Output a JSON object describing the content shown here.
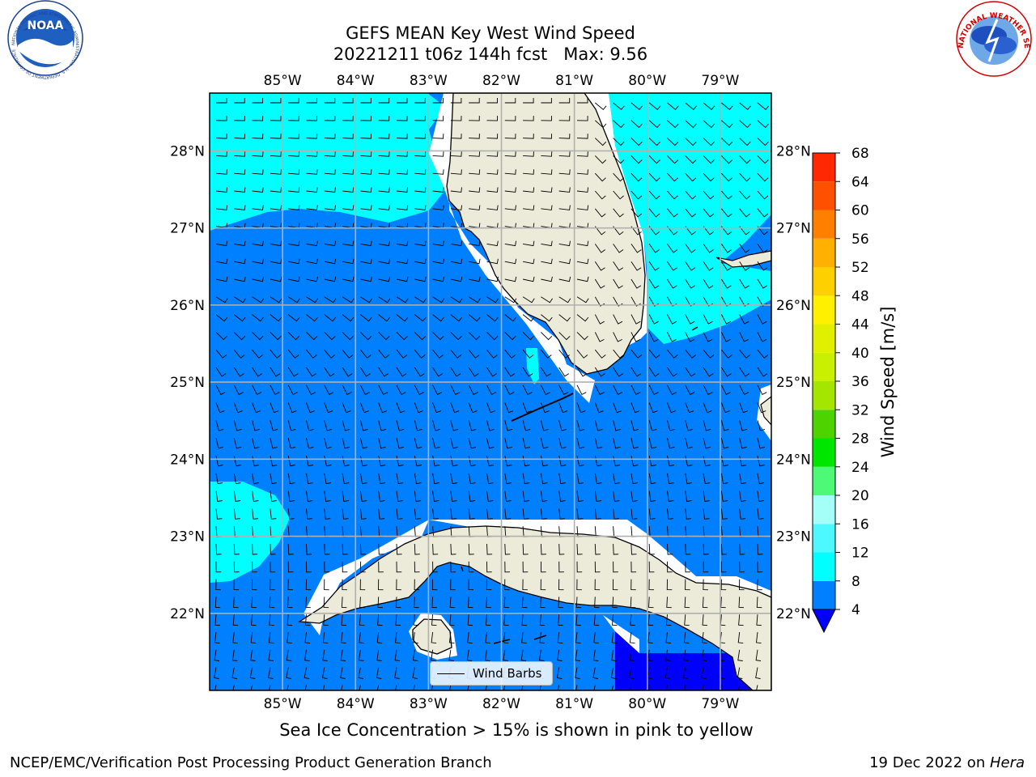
{
  "title": {
    "line1": "GEFS MEAN Key West Wind Speed",
    "line2": "20221211 t06z 144h fcst   Max: 9.56"
  },
  "map": {
    "lon_ticks": [
      "85°W",
      "84°W",
      "83°W",
      "82°W",
      "81°W",
      "80°W",
      "79°W"
    ],
    "lat_ticks": [
      "22°N",
      "23°N",
      "24°N",
      "25°N",
      "26°N",
      "27°N",
      "28°N"
    ],
    "lon_values": [
      -85,
      -84,
      -83,
      -82,
      -81,
      -80,
      -79
    ],
    "lat_values": [
      22,
      23,
      24,
      25,
      26,
      27,
      28
    ],
    "lon_range": [
      -86.0,
      -78.3
    ],
    "lat_range": [
      21.0,
      28.75
    ],
    "legend_label": "Wind Barbs",
    "colors": {
      "land": "#ecebd9",
      "speed_4_8": "#0080ff",
      "speed_8_12": "#00ffff",
      "speed_lt_4": "#0000ff",
      "grid": "#b0b0b0"
    }
  },
  "colorbar": {
    "label": "Wind Speed [m/s]",
    "ticks": [
      "4",
      "8",
      "12",
      "16",
      "20",
      "24",
      "28",
      "32",
      "36",
      "40",
      "44",
      "48",
      "52",
      "56",
      "60",
      "64",
      "68"
    ],
    "colors": [
      "#0080ff",
      "#00ffff",
      "#4df9ff",
      "#a5fff9",
      "#4df977",
      "#00e600",
      "#4dd300",
      "#a5e600",
      "#c8f000",
      "#e1f000",
      "#fff000",
      "#ffd000",
      "#ffb000",
      "#ff8000",
      "#ff5000",
      "#ff2800"
    ],
    "under_color": "#0000ff"
  },
  "caption": "Sea Ice Concentration > 15% is shown in pink to yellow",
  "footer": {
    "left": "NCEP/EMC/Verification Post Processing Product Generation Branch",
    "date": "19 Dec 2022 on ",
    "machine": "Hera"
  },
  "logos": {
    "noaa_text": "NOAA",
    "noaa_ring": "NATIONAL OCEANIC AND ATMOSPHERIC ADMINISTRATION · U.S. DEPARTMENT OF COMMERCE",
    "nws_ring": "NATIONAL WEATHER SERVICE"
  }
}
